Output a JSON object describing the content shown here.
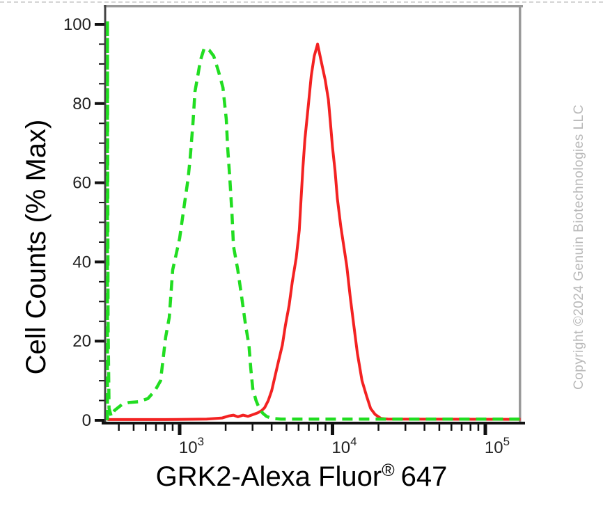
{
  "page": {
    "background": "#ffffff",
    "top_border_color": "#d4d4d4"
  },
  "watermark": {
    "text": "Copyright ©2024 Genuin Biotechnologies LLC",
    "color": "#b8b8b8"
  },
  "chart_data": {
    "type": "line",
    "subtype": "flow-cytometry-histogram-overlay",
    "title": "",
    "xlabel": "GRK2-Alexa Fluor® 647",
    "xlabel_parts": {
      "main": "GRK2-Alexa Fluor",
      "sup": "®",
      "tail": "647"
    },
    "ylabel": "Cell Counts (% Max)",
    "x_scale": "log",
    "xlim": [
      337,
      170000
    ],
    "ylim": [
      0,
      100
    ],
    "x_major_ticks": [
      1000,
      10000,
      100000
    ],
    "x_minor_multiples": [
      2,
      3,
      4,
      5,
      6,
      7,
      8,
      9
    ],
    "y_major_ticks": [
      0,
      20,
      40,
      60,
      80,
      100
    ],
    "y_minor_step": 5,
    "grid": false,
    "legend_position": "none",
    "axis_color": "#444444",
    "bottom_axis_color": "#111111",
    "frame_color": "#999999",
    "tick_color": "#111111",
    "tick_label_color": "#222222",
    "series": [
      {
        "name": "red-solid-histogram",
        "color": "#f32222",
        "line_style": "solid",
        "peak_x": 7990,
        "peak_y": 95,
        "points": [
          [
            337,
            0.2
          ],
          [
            800,
            0.2
          ],
          [
            1500,
            0.3
          ],
          [
            1900,
            0.6
          ],
          [
            2100,
            1.1
          ],
          [
            2250,
            1.3
          ],
          [
            2400,
            0.9
          ],
          [
            2600,
            1.3
          ],
          [
            2800,
            1.0
          ],
          [
            3000,
            1.4
          ],
          [
            3240,
            1.9
          ],
          [
            3430,
            2.4
          ],
          [
            3600,
            3.2
          ],
          [
            3800,
            5
          ],
          [
            4000,
            7.5
          ],
          [
            4200,
            11
          ],
          [
            4440,
            15
          ],
          [
            4700,
            19
          ],
          [
            4920,
            24
          ],
          [
            5200,
            29
          ],
          [
            5460,
            35
          ],
          [
            5790,
            41
          ],
          [
            6060,
            48
          ],
          [
            6230,
            56
          ],
          [
            6410,
            64
          ],
          [
            6600,
            71
          ],
          [
            6930,
            79
          ],
          [
            7260,
            87
          ],
          [
            7600,
            92
          ],
          [
            7990,
            95
          ],
          [
            8400,
            91
          ],
          [
            8960,
            86
          ],
          [
            9400,
            81
          ],
          [
            9700,
            75
          ],
          [
            10000,
            69
          ],
          [
            10400,
            63
          ],
          [
            10760,
            56
          ],
          [
            11330,
            49
          ],
          [
            12400,
            39
          ],
          [
            13080,
            31
          ],
          [
            13790,
            24
          ],
          [
            14550,
            17
          ],
          [
            15600,
            10
          ],
          [
            16750,
            6
          ],
          [
            17750,
            3
          ],
          [
            19000,
            1.5
          ],
          [
            20700,
            0.5
          ],
          [
            23000,
            0.3
          ],
          [
            170000,
            0.25
          ]
        ]
      },
      {
        "name": "green-dashed-histogram",
        "color": "#21dd21",
        "line_style": "dashed",
        "peak_x": 1450,
        "peak_y": 94,
        "points": [
          [
            337,
            0
          ],
          [
            337,
            101
          ],
          [
            340,
            25
          ],
          [
            345,
            3
          ],
          [
            357,
            1
          ],
          [
            375,
            2.5
          ],
          [
            420,
            4
          ],
          [
            465,
            4.5
          ],
          [
            540,
            4.7
          ],
          [
            620,
            5.5
          ],
          [
            690,
            7.5
          ],
          [
            750,
            10
          ],
          [
            810,
            21
          ],
          [
            855,
            26
          ],
          [
            900,
            38
          ],
          [
            950,
            42
          ],
          [
            1000,
            46
          ],
          [
            1070,
            54
          ],
          [
            1135,
            61
          ],
          [
            1170,
            66
          ],
          [
            1222,
            75
          ],
          [
            1260,
            83
          ],
          [
            1300,
            86
          ],
          [
            1370,
            91
          ],
          [
            1450,
            94
          ],
          [
            1560,
            93.5
          ],
          [
            1670,
            92
          ],
          [
            1800,
            88
          ],
          [
            1920,
            84
          ],
          [
            2020,
            76
          ],
          [
            2060,
            69
          ],
          [
            2130,
            61
          ],
          [
            2200,
            52
          ],
          [
            2250,
            44
          ],
          [
            2400,
            38
          ],
          [
            2550,
            31
          ],
          [
            2700,
            24
          ],
          [
            2840,
            19
          ],
          [
            2920,
            13
          ],
          [
            3010,
            8
          ],
          [
            3160,
            5
          ],
          [
            3320,
            3
          ],
          [
            3500,
            1.8
          ],
          [
            3700,
            1
          ],
          [
            4000,
            0.5
          ],
          [
            4600,
            0.3
          ],
          [
            170000,
            0.3
          ]
        ]
      }
    ]
  }
}
